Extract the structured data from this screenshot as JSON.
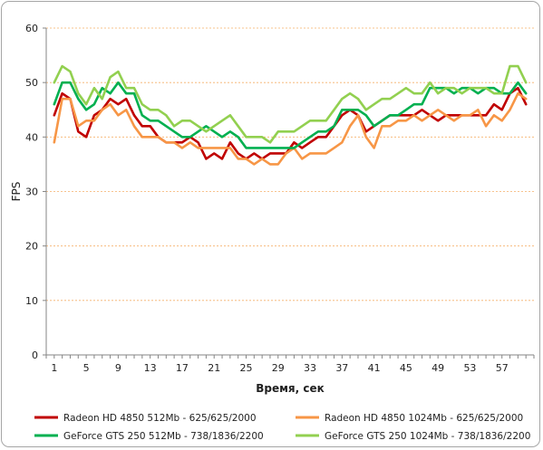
{
  "chart_data": {
    "type": "line",
    "xlabel": "Время, сек",
    "ylabel": "FPS",
    "xlim": [
      0,
      61
    ],
    "ylim": [
      0,
      60
    ],
    "yticks": [
      0,
      10,
      20,
      30,
      40,
      50,
      60
    ],
    "xticks": [
      1,
      5,
      9,
      13,
      17,
      21,
      25,
      29,
      33,
      37,
      41,
      45,
      49,
      53,
      57
    ],
    "grid": "horizontal-dashed",
    "legend_position": "bottom",
    "x": [
      1,
      2,
      3,
      4,
      5,
      6,
      7,
      8,
      9,
      10,
      11,
      12,
      13,
      14,
      15,
      16,
      17,
      18,
      19,
      20,
      21,
      22,
      23,
      24,
      25,
      26,
      27,
      28,
      29,
      30,
      31,
      32,
      33,
      34,
      35,
      36,
      37,
      38,
      39,
      40,
      41,
      42,
      43,
      44,
      45,
      46,
      47,
      48,
      49,
      50,
      51,
      52,
      53,
      54,
      55,
      56,
      57,
      58,
      59,
      60
    ],
    "series": [
      {
        "name": "Radeon HD 4850 512Mb - 625/625/2000",
        "color": "#c00000",
        "values": [
          44,
          48,
          47,
          41,
          40,
          44,
          45,
          47,
          46,
          47,
          44,
          42,
          42,
          40,
          39,
          39,
          39,
          40,
          39,
          36,
          37,
          36,
          39,
          37,
          36,
          37,
          36,
          37,
          37,
          37,
          39,
          38,
          39,
          40,
          40,
          42,
          44,
          45,
          44,
          41,
          42,
          43,
          44,
          44,
          44,
          44,
          45,
          44,
          43,
          44,
          44,
          44,
          44,
          44,
          44,
          46,
          45,
          48,
          49,
          46
        ]
      },
      {
        "name": "Radeon HD 4850 1024Mb - 625/625/2000",
        "color": "#f79646",
        "values": [
          39,
          47,
          47,
          42,
          43,
          43,
          45,
          46,
          44,
          45,
          42,
          40,
          40,
          40,
          39,
          39,
          38,
          39,
          38,
          38,
          38,
          38,
          38,
          36,
          36,
          35,
          36,
          35,
          35,
          37,
          38,
          36,
          37,
          37,
          37,
          38,
          39,
          42,
          44,
          40,
          38,
          42,
          42,
          43,
          43,
          44,
          43,
          44,
          45,
          44,
          43,
          44,
          44,
          45,
          42,
          44,
          43,
          45,
          48,
          47
        ]
      },
      {
        "name": "GeForce GTS 250 512Mb - 738/1836/2200",
        "color": "#00b050",
        "values": [
          46,
          50,
          50,
          47,
          45,
          46,
          49,
          48,
          50,
          48,
          48,
          44,
          43,
          43,
          42,
          41,
          40,
          40,
          41,
          42,
          41,
          40,
          41,
          40,
          38,
          38,
          38,
          38,
          38,
          38,
          38,
          39,
          40,
          41,
          41,
          42,
          45,
          45,
          45,
          44,
          42,
          43,
          44,
          44,
          45,
          46,
          46,
          49,
          49,
          49,
          48,
          49,
          49,
          48,
          49,
          49,
          48,
          48,
          50,
          48
        ]
      },
      {
        "name": "GeForce GTS 250 1024Mb - 738/1836/2200",
        "color": "#92d050",
        "values": [
          50,
          53,
          52,
          48,
          46,
          49,
          47,
          51,
          52,
          49,
          49,
          46,
          45,
          45,
          44,
          42,
          43,
          43,
          42,
          41,
          42,
          43,
          44,
          42,
          40,
          40,
          40,
          39,
          41,
          41,
          41,
          42,
          43,
          43,
          43,
          45,
          47,
          48,
          47,
          45,
          46,
          47,
          47,
          48,
          49,
          48,
          48,
          50,
          48,
          49,
          49,
          48,
          49,
          49,
          49,
          48,
          48,
          53,
          53,
          50
        ]
      }
    ]
  }
}
